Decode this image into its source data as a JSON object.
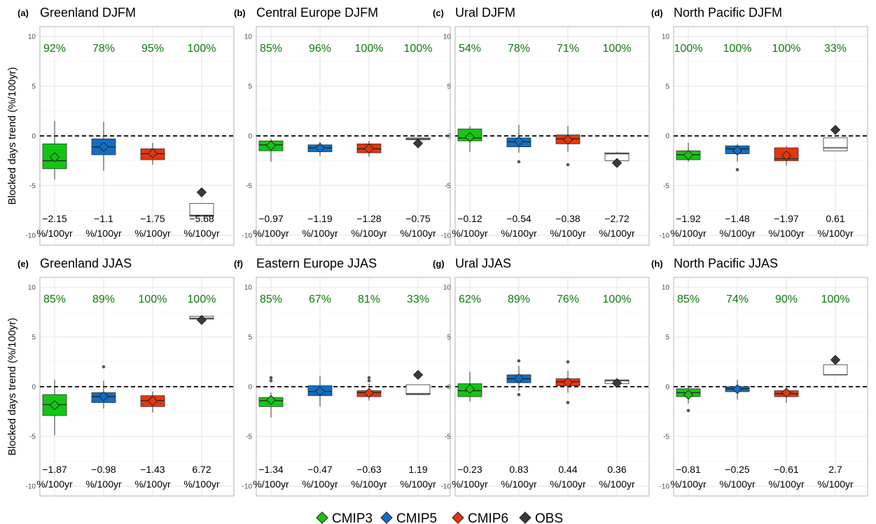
{
  "chart_data": {
    "type": "boxplot",
    "ylabel": "Blocked days trend (%/100yr)",
    "ylim": [
      -11,
      11
    ],
    "yticks": [
      -10,
      -5,
      0,
      5,
      10
    ],
    "unit": "%/100yr",
    "reference_line": 0,
    "legend": [
      {
        "name": "CMIP3",
        "color": "#13c613"
      },
      {
        "name": "CMIP5",
        "color": "#0f6fc6"
      },
      {
        "name": "CMIP6",
        "color": "#e5360f"
      },
      {
        "name": "OBS",
        "color": "#3a3a3a"
      }
    ],
    "percent_color": "#0d7a0d",
    "panels": [
      {
        "label": "(a)",
        "title": "Greenland DJFM",
        "percents": [
          "92%",
          "78%",
          "95%",
          "100%"
        ],
        "means": [
          "−2.15",
          "−1.1",
          "−1.75",
          "−5.68"
        ],
        "boxes": [
          {
            "q1": -3.3,
            "median": -2.5,
            "q3": -0.8,
            "wlo": -4.4,
            "whi": 1.5,
            "mean": -2.15,
            "out": []
          },
          {
            "q1": -1.9,
            "median": -1.1,
            "q3": -0.3,
            "wlo": -3.5,
            "whi": 1.4,
            "mean": -1.1,
            "out": []
          },
          {
            "q1": -2.4,
            "median": -1.8,
            "q3": -1.3,
            "wlo": -2.9,
            "whi": -0.7,
            "mean": -1.75,
            "out": []
          },
          {
            "q1": -8.1,
            "median": -8.0,
            "q3": -6.8,
            "wlo": -8.1,
            "whi": -6.8,
            "mean": -5.68,
            "out": []
          }
        ]
      },
      {
        "label": "(b)",
        "title": "Central Europe DJFM",
        "percents": [
          "85%",
          "96%",
          "100%",
          "100%"
        ],
        "means": [
          "−0.97",
          "−1.19",
          "−1.28",
          "−0.75"
        ],
        "boxes": [
          {
            "q1": -1.5,
            "median": -0.9,
            "q3": -0.5,
            "wlo": -2.6,
            "whi": -0.3,
            "mean": -0.97,
            "out": []
          },
          {
            "q1": -1.6,
            "median": -1.2,
            "q3": -0.9,
            "wlo": -2.0,
            "whi": -0.6,
            "mean": -1.19,
            "out": []
          },
          {
            "q1": -1.7,
            "median": -1.3,
            "q3": -0.8,
            "wlo": -2.1,
            "whi": -0.5,
            "mean": -1.28,
            "out": []
          },
          {
            "q1": -0.4,
            "median": -0.3,
            "q3": -0.2,
            "wlo": -0.4,
            "whi": -0.2,
            "mean": -0.75,
            "out": []
          }
        ]
      },
      {
        "label": "(c)",
        "title": "Ural DJFM",
        "percents": [
          "54%",
          "78%",
          "71%",
          "100%"
        ],
        "means": [
          "−0.12",
          "−0.54",
          "−0.38",
          "−2.72"
        ],
        "boxes": [
          {
            "q1": -0.5,
            "median": -0.2,
            "q3": 0.7,
            "wlo": -1.6,
            "whi": 1.0,
            "mean": -0.12,
            "out": []
          },
          {
            "q1": -1.1,
            "median": -0.6,
            "q3": -0.2,
            "wlo": -1.7,
            "whi": 1.1,
            "mean": -0.54,
            "out": [
              -2.6
            ]
          },
          {
            "q1": -0.8,
            "median": -0.3,
            "q3": 0.1,
            "wlo": -1.6,
            "whi": 1.0,
            "mean": -0.38,
            "out": [
              -2.9
            ]
          },
          {
            "q1": -2.5,
            "median": -1.8,
            "q3": -1.7,
            "wlo": -2.5,
            "whi": -1.6,
            "mean": -2.72,
            "out": []
          }
        ]
      },
      {
        "label": "(d)",
        "title": "North Pacific DJFM",
        "percents": [
          "100%",
          "100%",
          "100%",
          "33%"
        ],
        "means": [
          "−1.92",
          "−1.48",
          "−1.97",
          "0.61"
        ],
        "boxes": [
          {
            "q1": -2.4,
            "median": -1.9,
            "q3": -1.5,
            "wlo": -2.6,
            "whi": -0.7,
            "mean": -1.92,
            "out": []
          },
          {
            "q1": -1.8,
            "median": -1.3,
            "q3": -1.0,
            "wlo": -2.6,
            "whi": -0.8,
            "mean": -1.48,
            "out": [
              -3.4
            ]
          },
          {
            "q1": -2.5,
            "median": -2.3,
            "q3": -1.2,
            "wlo": -3.0,
            "whi": -1.0,
            "mean": -1.97,
            "out": []
          },
          {
            "q1": -1.5,
            "median": -1.2,
            "q3": -0.2,
            "wlo": -1.5,
            "whi": -0.2,
            "mean": 0.61,
            "out": []
          }
        ]
      },
      {
        "label": "(e)",
        "title": "Greenland JJAS",
        "percents": [
          "85%",
          "89%",
          "100%",
          "100%"
        ],
        "means": [
          "−1.87",
          "−0.98",
          "−1.43",
          "6.72"
        ],
        "boxes": [
          {
            "q1": -2.9,
            "median": -1.8,
            "q3": -0.8,
            "wlo": -4.9,
            "whi": 0.7,
            "mean": -1.87,
            "out": []
          },
          {
            "q1": -1.6,
            "median": -1.0,
            "q3": -0.6,
            "wlo": -2.2,
            "whi": 0.6,
            "mean": -0.98,
            "out": [
              2.0
            ]
          },
          {
            "q1": -2.0,
            "median": -1.4,
            "q3": -0.9,
            "wlo": -2.6,
            "whi": -0.5,
            "mean": -1.43,
            "out": []
          },
          {
            "q1": 6.8,
            "median": 6.9,
            "q3": 7.1,
            "wlo": 6.8,
            "whi": 7.1,
            "mean": 6.72,
            "out": []
          }
        ]
      },
      {
        "label": "(f)",
        "title": "Eastern Europe JJAS",
        "percents": [
          "85%",
          "67%",
          "81%",
          "33%"
        ],
        "means": [
          "−1.34",
          "−0.47",
          "−0.63",
          "1.19"
        ],
        "boxes": [
          {
            "q1": -2.0,
            "median": -1.4,
            "q3": -1.1,
            "wlo": -3.1,
            "whi": -0.6,
            "mean": -1.34,
            "out": [
              0.6,
              0.9
            ]
          },
          {
            "q1": -0.9,
            "median": -0.5,
            "q3": 0.1,
            "wlo": -2.0,
            "whi": 1.1,
            "mean": -0.47,
            "out": []
          },
          {
            "q1": -1.0,
            "median": -0.6,
            "q3": -0.4,
            "wlo": -1.4,
            "whi": 0.3,
            "mean": -0.63,
            "out": [
              0.6,
              0.9
            ]
          },
          {
            "q1": -0.8,
            "median": -0.7,
            "q3": 0.2,
            "wlo": -0.8,
            "whi": 0.2,
            "mean": 1.19,
            "out": []
          }
        ]
      },
      {
        "label": "(g)",
        "title": "Ural JJAS",
        "percents": [
          "62%",
          "89%",
          "76%",
          "100%"
        ],
        "means": [
          "−0.23",
          "0.83",
          "0.44",
          "0.36"
        ],
        "boxes": [
          {
            "q1": -1.0,
            "median": -0.4,
            "q3": 0.3,
            "wlo": -1.5,
            "whi": 1.5,
            "mean": -0.23,
            "out": []
          },
          {
            "q1": 0.4,
            "median": 0.8,
            "q3": 1.2,
            "wlo": -0.4,
            "whi": 2.1,
            "mean": 0.83,
            "out": [
              2.6,
              -0.8
            ]
          },
          {
            "q1": 0.1,
            "median": 0.5,
            "q3": 0.8,
            "wlo": -0.6,
            "whi": 1.6,
            "mean": 0.44,
            "out": [
              2.5,
              -1.6
            ]
          },
          {
            "q1": 0.3,
            "median": 0.6,
            "q3": 0.7,
            "wlo": 0.3,
            "whi": 0.7,
            "mean": 0.36,
            "out": []
          }
        ]
      },
      {
        "label": "(h)",
        "title": "North Pacific JJAS",
        "percents": [
          "85%",
          "74%",
          "90%",
          "100%"
        ],
        "means": [
          "−0.81",
          "−0.25",
          "−0.61",
          "2.7"
        ],
        "boxes": [
          {
            "q1": -1.0,
            "median": -0.6,
            "q3": -0.2,
            "wlo": -1.7,
            "whi": 0.1,
            "mean": -0.81,
            "out": [
              -2.4
            ]
          },
          {
            "q1": -0.5,
            "median": -0.2,
            "q3": 0.0,
            "wlo": -1.3,
            "whi": 0.7,
            "mean": -0.25,
            "out": []
          },
          {
            "q1": -1.0,
            "median": -0.7,
            "q3": -0.4,
            "wlo": -1.6,
            "whi": 0.0,
            "mean": -0.61,
            "out": []
          },
          {
            "q1": 1.2,
            "median": 1.2,
            "q3": 2.2,
            "wlo": 1.2,
            "whi": 2.2,
            "mean": 2.7,
            "out": []
          }
        ]
      }
    ]
  }
}
